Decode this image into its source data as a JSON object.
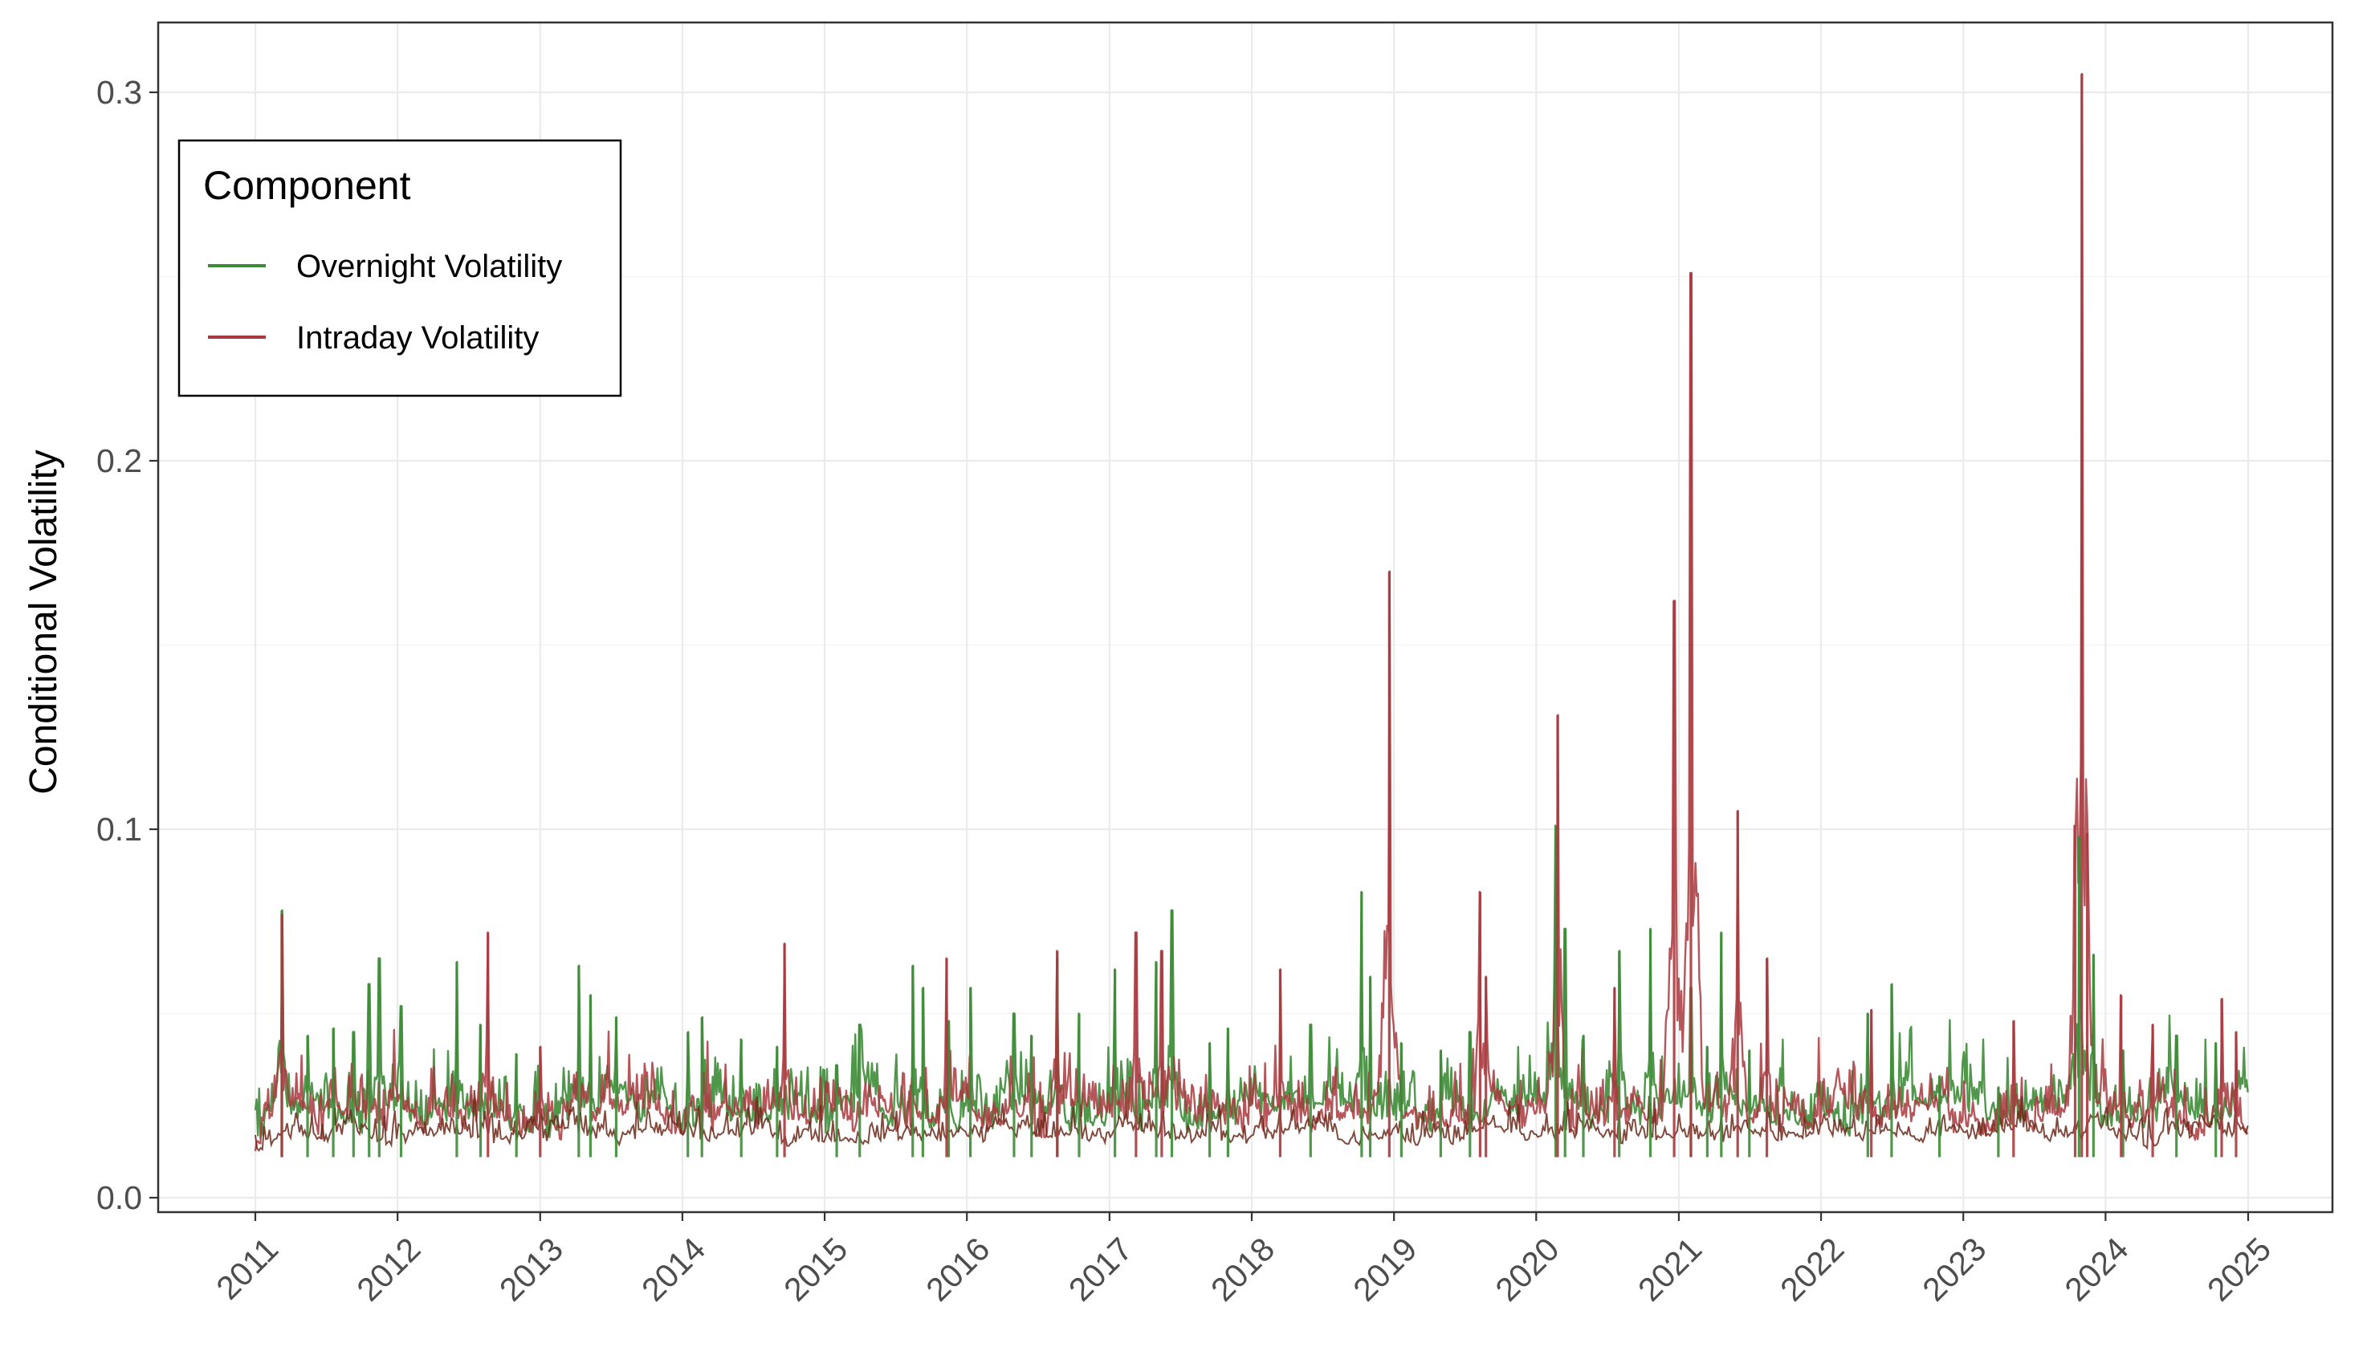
{
  "chart_data": {
    "type": "line",
    "title": "",
    "xlabel": "",
    "ylabel": "Conditional Volatility",
    "xlim": [
      "2011-01-01",
      "2025-01-01"
    ],
    "ylim": [
      0,
      0.3
    ],
    "x_ticks": [
      "2011",
      "2012",
      "2013",
      "2014",
      "2015",
      "2016",
      "2017",
      "2018",
      "2019",
      "2020",
      "2021",
      "2022",
      "2023",
      "2024",
      "2025"
    ],
    "y_ticks": [
      "0.0",
      "0.1",
      "0.2",
      "0.3"
    ],
    "grid": true,
    "legend": {
      "title": "Component",
      "position": "top-left",
      "entries": [
        "Overnight Volatility",
        "Intraday Volatility"
      ]
    },
    "baseline": 0.011,
    "series": [
      {
        "name": "Overnight Volatility",
        "color": "#3d8b37",
        "spikes": [
          [
            "2011-03-10",
            0.078
          ],
          [
            "2011-05-15",
            0.044
          ],
          [
            "2011-07-20",
            0.046
          ],
          [
            "2011-09-10",
            0.045
          ],
          [
            "2011-10-20",
            0.058
          ],
          [
            "2011-11-15",
            0.065
          ],
          [
            "2012-01-10",
            0.052
          ],
          [
            "2012-06-01",
            0.064
          ],
          [
            "2012-08-01",
            0.047
          ],
          [
            "2012-11-01",
            0.039
          ],
          [
            "2013-04-10",
            0.063
          ],
          [
            "2013-05-10",
            0.055
          ],
          [
            "2013-07-15",
            0.049
          ],
          [
            "2014-01-15",
            0.045
          ],
          [
            "2014-02-20",
            0.049
          ],
          [
            "2014-06-01",
            0.043
          ],
          [
            "2014-09-01",
            0.041
          ],
          [
            "2015-02-01",
            0.036
          ],
          [
            "2015-04-01",
            0.047
          ],
          [
            "2015-08-15",
            0.063
          ],
          [
            "2015-09-10",
            0.057
          ],
          [
            "2015-11-15",
            0.048
          ],
          [
            "2016-01-10",
            0.057
          ],
          [
            "2016-05-01",
            0.05
          ],
          [
            "2016-06-15",
            0.044
          ],
          [
            "2016-08-20",
            0.065
          ],
          [
            "2016-10-15",
            0.05
          ],
          [
            "2017-01-15",
            0.062
          ],
          [
            "2017-05-01",
            0.064
          ],
          [
            "2017-06-10",
            0.078
          ],
          [
            "2017-09-15",
            0.042
          ],
          [
            "2017-11-01",
            0.046
          ],
          [
            "2018-06-01",
            0.047
          ],
          [
            "2018-10-10",
            0.083
          ],
          [
            "2018-11-01",
            0.06
          ],
          [
            "2019-01-20",
            0.042
          ],
          [
            "2019-05-01",
            0.04
          ],
          [
            "2019-07-15",
            0.045
          ],
          [
            "2020-02-20",
            0.101
          ],
          [
            "2020-03-15",
            0.073
          ],
          [
            "2020-05-01",
            0.044
          ],
          [
            "2020-08-01",
            0.067
          ],
          [
            "2020-10-20",
            0.073
          ],
          [
            "2021-02-01",
            0.057
          ],
          [
            "2021-03-15",
            0.041
          ],
          [
            "2021-04-20",
            0.072
          ],
          [
            "2021-07-01",
            0.04
          ],
          [
            "2022-05-01",
            0.05
          ],
          [
            "2022-07-01",
            0.058
          ],
          [
            "2022-11-01",
            0.033
          ],
          [
            "2023-04-01",
            0.03
          ],
          [
            "2023-10-25",
            0.098
          ],
          [
            "2023-12-01",
            0.066
          ],
          [
            "2024-02-15",
            0.04
          ],
          [
            "2024-07-01",
            0.044
          ],
          [
            "2024-10-10",
            0.042
          ]
        ]
      },
      {
        "name": "Intraday Volatility",
        "color": "#a8383d",
        "spikes": [
          [
            "2011-03-10",
            0.077
          ],
          [
            "2012-08-20",
            0.072
          ],
          [
            "2013-01-01",
            0.041
          ],
          [
            "2014-09-20",
            0.069
          ],
          [
            "2015-11-10",
            0.065
          ],
          [
            "2016-08-20",
            0.067
          ],
          [
            "2017-03-10",
            0.072
          ],
          [
            "2017-05-15",
            0.067
          ],
          [
            "2018-03-15",
            0.062
          ],
          [
            "2018-12-20",
            0.17
          ],
          [
            "2019-08-10",
            0.083
          ],
          [
            "2019-08-25",
            0.06
          ],
          [
            "2020-02-25",
            0.131
          ],
          [
            "2020-07-20",
            0.057
          ],
          [
            "2020-12-20",
            0.162
          ],
          [
            "2021-02-01",
            0.251
          ],
          [
            "2021-06-01",
            0.105
          ],
          [
            "2021-08-15",
            0.065
          ],
          [
            "2022-05-10",
            0.051
          ],
          [
            "2023-05-10",
            0.048
          ],
          [
            "2023-10-15",
            0.101
          ],
          [
            "2023-11-01",
            0.305
          ],
          [
            "2023-11-15",
            0.099
          ],
          [
            "2024-02-10",
            0.055
          ],
          [
            "2024-05-01",
            0.047
          ],
          [
            "2024-10-25",
            0.054
          ],
          [
            "2024-12-01",
            0.045
          ]
        ]
      }
    ]
  }
}
